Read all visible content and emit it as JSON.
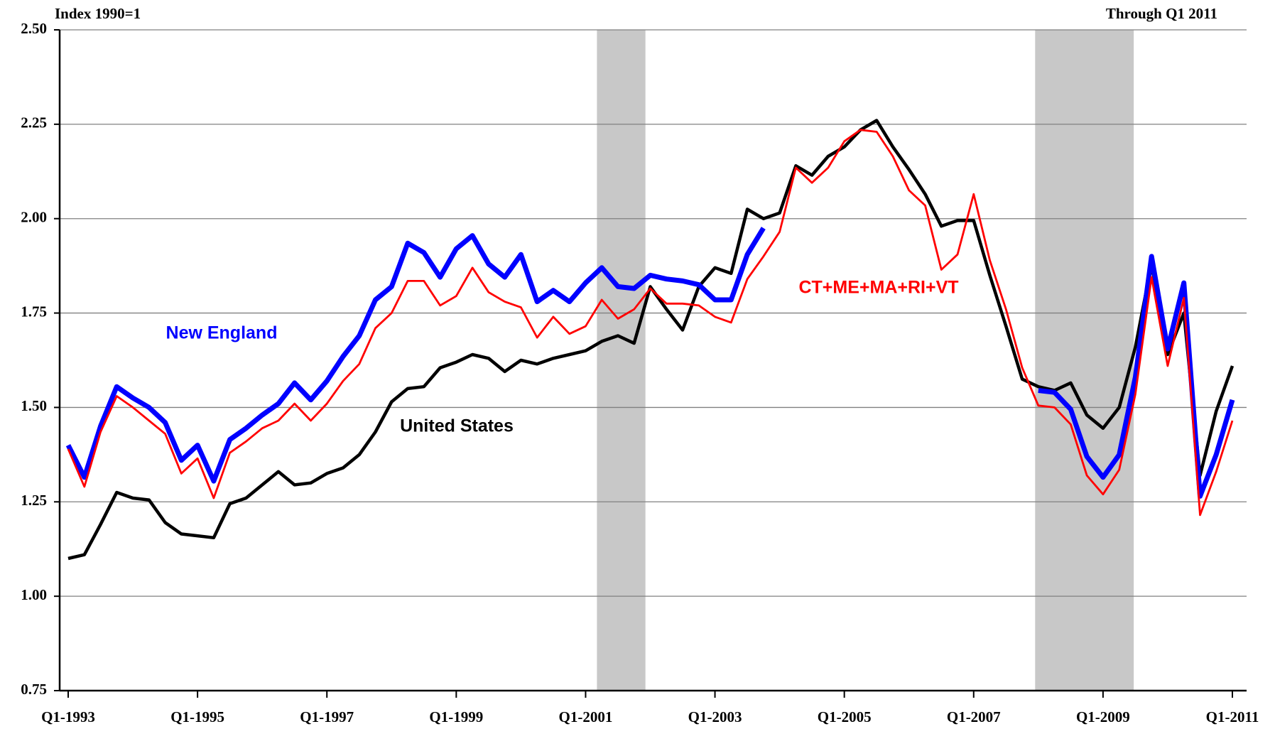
{
  "chart_data": {
    "type": "line",
    "subtitle_left": "Index 1990=1",
    "subtitle_right": "Through Q1 2011",
    "categories": [
      "Q1-1993",
      null,
      null,
      null,
      null,
      null,
      null,
      null,
      "Q1-1995",
      null,
      null,
      null,
      null,
      null,
      null,
      null,
      "Q1-1997",
      null,
      null,
      null,
      null,
      null,
      null,
      null,
      "Q1-1999",
      null,
      null,
      null,
      null,
      null,
      null,
      null,
      "Q1-2001",
      null,
      null,
      null,
      null,
      null,
      null,
      null,
      "Q1-2003",
      null,
      null,
      null,
      null,
      null,
      null,
      null,
      "Q1-2005",
      null,
      null,
      null,
      null,
      null,
      null,
      null,
      "Q1-2007",
      null,
      null,
      null,
      null,
      null,
      null,
      null,
      "Q1-2009",
      null,
      null,
      null,
      null,
      null,
      null,
      null,
      "Q1-2011"
    ],
    "ylim": [
      0.75,
      2.5
    ],
    "yticks": [
      0.75,
      {
        "value": 1,
        "label": "1.00"
      },
      1.25,
      {
        "value": 1.5,
        "label": "1.50"
      },
      1.75,
      {
        "value": 2,
        "label": "2.00"
      },
      2.25,
      {
        "value": 2.5,
        "label": "2.50"
      }
    ],
    "grid": true,
    "shaded_ranges": [
      [
        32.7,
        35.7
      ],
      [
        59.8,
        65.9
      ]
    ],
    "shade_color": "#c8c8c8",
    "series": [
      {
        "name": "United States",
        "color": "#000000",
        "values": [
          1.1,
          1.11,
          1.19,
          1.275,
          1.26,
          1.255,
          1.195,
          1.165,
          1.16,
          1.155,
          1.245,
          1.26,
          1.295,
          1.33,
          1.295,
          1.3,
          1.325,
          1.34,
          1.375,
          1.435,
          1.515,
          1.55,
          1.555,
          1.605,
          1.62,
          1.64,
          1.63,
          1.595,
          1.625,
          1.615,
          1.63,
          1.64,
          1.65,
          1.675,
          1.69,
          1.67,
          1.82,
          1.76,
          1.705,
          1.82,
          1.87,
          1.855,
          2.025,
          2.0,
          2.015,
          2.14,
          2.115,
          2.165,
          2.19,
          2.235,
          2.26,
          2.19,
          2.13,
          2.065,
          1.98,
          1.995,
          1.995,
          1.85,
          1.715,
          1.575,
          1.555,
          1.545,
          1.565,
          1.48,
          1.445,
          1.5,
          1.66,
          1.88,
          1.64,
          1.75,
          1.32,
          1.49,
          1.61
        ]
      },
      {
        "name": "New England",
        "color": "#0000ff",
        "values": [
          1.4,
          1.315,
          1.45,
          1.555,
          1.525,
          1.5,
          1.46,
          1.36,
          1.4,
          1.305,
          1.415,
          1.445,
          1.48,
          1.51,
          1.565,
          1.52,
          1.57,
          1.635,
          1.69,
          1.785,
          1.82,
          1.935,
          1.91,
          1.845,
          1.92,
          1.955,
          1.88,
          1.845,
          1.905,
          1.78,
          1.81,
          1.78,
          1.83,
          1.87,
          1.82,
          1.815,
          1.85,
          1.84,
          1.835,
          1.825,
          1.785,
          1.785,
          1.905,
          1.975,
          null,
          null,
          null,
          null,
          null,
          null,
          null,
          null,
          null,
          null,
          null,
          null,
          null,
          null,
          null,
          null,
          1.545,
          1.54,
          1.495,
          1.37,
          1.315,
          1.375,
          1.58,
          1.9,
          1.655,
          1.83,
          1.265,
          1.375,
          1.52
        ]
      },
      {
        "name": "CT+ME+MA+RI+VT",
        "color": "#ff0000",
        "values": [
          1.39,
          1.29,
          1.435,
          1.53,
          1.5,
          1.465,
          1.43,
          1.325,
          1.365,
          1.26,
          1.38,
          1.41,
          1.445,
          1.465,
          1.51,
          1.465,
          1.51,
          1.57,
          1.615,
          1.71,
          1.75,
          1.835,
          1.835,
          1.77,
          1.795,
          1.87,
          1.805,
          1.78,
          1.765,
          1.685,
          1.74,
          1.695,
          1.715,
          1.785,
          1.735,
          1.76,
          1.815,
          1.775,
          1.775,
          1.77,
          1.74,
          1.725,
          1.84,
          1.9,
          1.965,
          2.135,
          2.095,
          2.135,
          2.205,
          2.235,
          2.23,
          2.165,
          2.075,
          2.035,
          1.865,
          1.905,
          2.065,
          1.89,
          1.76,
          1.605,
          1.505,
          1.5,
          1.455,
          1.32,
          1.27,
          1.335,
          1.535,
          1.845,
          1.61,
          1.79,
          1.215,
          1.33,
          1.465
        ]
      }
    ]
  }
}
